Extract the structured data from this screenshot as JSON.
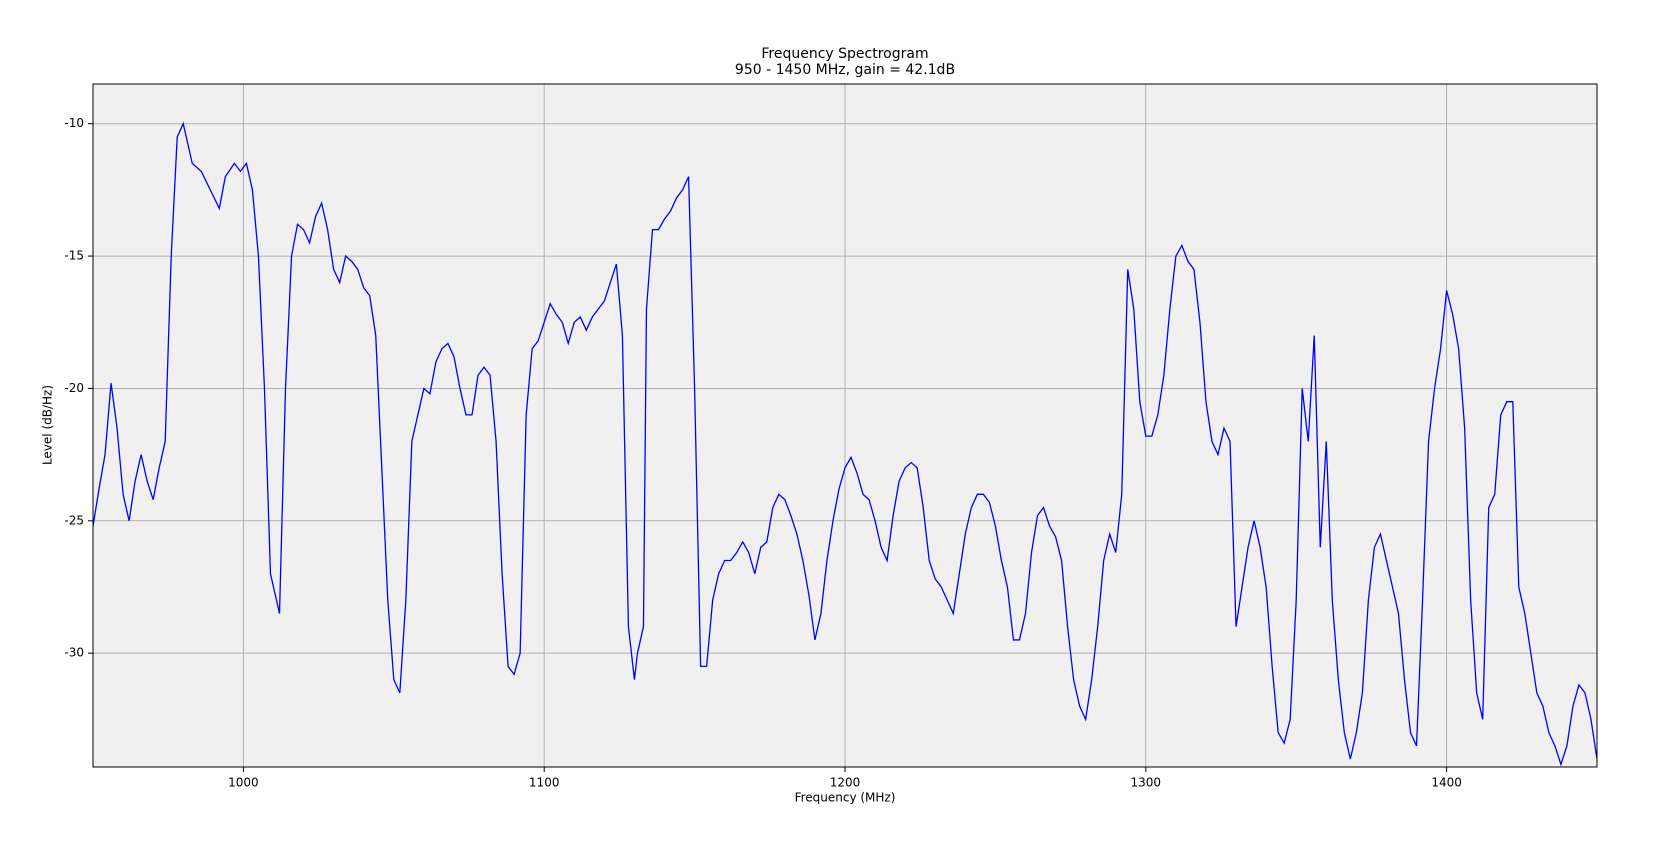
{
  "chart_data": {
    "type": "line",
    "title": "Frequency Spectrogram",
    "subtitle": "950 - 1450 MHz, gain = 42.1dB",
    "x_label": "Frequency (MHz)",
    "y_label": "Level (dB/Hz)",
    "color": "#0000ff",
    "grid": true,
    "xlim": [
      950,
      1450
    ],
    "ylim": [
      -34.3,
      -8.5
    ],
    "xticks": [
      1000,
      1100,
      1200,
      1300,
      1400
    ],
    "yticks": [
      -10,
      -15,
      -20,
      -25,
      -30
    ],
    "x": [
      950,
      952,
      954,
      956,
      958,
      960,
      962,
      964,
      966,
      968,
      970,
      972,
      974,
      976,
      978,
      980,
      983,
      986,
      989,
      992,
      994,
      997,
      999,
      1001,
      1003,
      1005,
      1007,
      1009,
      1011,
      1012,
      1014,
      1016,
      1018,
      1020,
      1022,
      1024,
      1026,
      1028,
      1030,
      1032,
      1034,
      1036,
      1038,
      1040,
      1042,
      1044,
      1046,
      1048,
      1050,
      1052,
      1054,
      1056,
      1058,
      1060,
      1062,
      1064,
      1066,
      1068,
      1070,
      1072,
      1074,
      1076,
      1078,
      1080,
      1082,
      1084,
      1086,
      1088,
      1090,
      1092,
      1094,
      1096,
      1098,
      1100,
      1102,
      1104,
      1106,
      1108,
      1110,
      1112,
      1114,
      1116,
      1118,
      1120,
      1122,
      1124,
      1126,
      1128,
      1130,
      1131,
      1133,
      1134,
      1136,
      1138,
      1140,
      1142,
      1144,
      1146,
      1148,
      1150,
      1152,
      1154,
      1156,
      1158,
      1160,
      1162,
      1164,
      1166,
      1168,
      1170,
      1172,
      1174,
      1176,
      1178,
      1180,
      1182,
      1184,
      1186,
      1188,
      1190,
      1192,
      1194,
      1196,
      1198,
      1200,
      1202,
      1204,
      1206,
      1208,
      1210,
      1212,
      1214,
      1216,
      1218,
      1220,
      1222,
      1224,
      1226,
      1228,
      1230,
      1232,
      1234,
      1236,
      1238,
      1240,
      1242,
      1244,
      1246,
      1248,
      1250,
      1252,
      1254,
      1256,
      1258,
      1260,
      1262,
      1264,
      1266,
      1268,
      1270,
      1272,
      1274,
      1276,
      1278,
      1280,
      1282,
      1284,
      1286,
      1288,
      1290,
      1292,
      1294,
      1296,
      1298,
      1300,
      1302,
      1304,
      1306,
      1308,
      1310,
      1312,
      1314,
      1316,
      1318,
      1320,
      1322,
      1324,
      1326,
      1328,
      1330,
      1332,
      1334,
      1336,
      1338,
      1340,
      1342,
      1344,
      1346,
      1348,
      1350,
      1352,
      1354,
      1356,
      1358,
      1360,
      1362,
      1364,
      1366,
      1368,
      1370,
      1372,
      1374,
      1376,
      1378,
      1380,
      1382,
      1384,
      1386,
      1388,
      1390,
      1392,
      1394,
      1396,
      1398,
      1400,
      1402,
      1404,
      1406,
      1408,
      1410,
      1412,
      1414,
      1416,
      1418,
      1420,
      1422,
      1424,
      1426,
      1428,
      1430,
      1432,
      1434,
      1436,
      1438,
      1440,
      1442,
      1444,
      1446,
      1448,
      1450
    ],
    "values": [
      -25.2,
      -23.8,
      -22.5,
      -19.8,
      -21.5,
      -24,
      -25,
      -23.5,
      -22.5,
      -23.5,
      -24.2,
      -23,
      -22,
      -15,
      -10.5,
      -10,
      -11.5,
      -11.8,
      -12.5,
      -13.2,
      -12,
      -11.5,
      -11.8,
      -11.5,
      -12.5,
      -15,
      -20,
      -27,
      -28,
      -28.5,
      -20,
      -15,
      -13.8,
      -14,
      -14.5,
      -13.5,
      -13,
      -14,
      -15.5,
      -16,
      -15,
      -15.2,
      -15.5,
      -16.2,
      -16.5,
      -18,
      -23,
      -28,
      -31,
      -31.5,
      -28,
      -22,
      -21,
      -20,
      -20.2,
      -19,
      -18.5,
      -18.3,
      -18.8,
      -20,
      -21,
      -21,
      -19.5,
      -19.2,
      -19.5,
      -22,
      -27,
      -30.5,
      -30.8,
      -30,
      -21,
      -18.5,
      -18.2,
      -17.5,
      -16.8,
      -17.2,
      -17.5,
      -18.3,
      -17.5,
      -17.3,
      -17.8,
      -17.3,
      -17,
      -16.7,
      -16,
      -15.3,
      -18,
      -29,
      -31,
      -30,
      -29,
      -17,
      -14,
      -14,
      -13.6,
      -13.3,
      -12.8,
      -12.5,
      -12,
      -20,
      -30.5,
      -30.5,
      -28,
      -27,
      -26.5,
      -26.5,
      -26.2,
      -25.8,
      -26.2,
      -27,
      -26,
      -25.8,
      -24.5,
      -24,
      -24.2,
      -24.8,
      -25.5,
      -26.5,
      -27.8,
      -29.5,
      -28.5,
      -26.5,
      -25,
      -23.8,
      -23,
      -22.6,
      -23.2,
      -24,
      -24.2,
      -25,
      -26,
      -26.5,
      -24.8,
      -23.5,
      -23,
      -22.8,
      -23,
      -24.5,
      -26.5,
      -27.2,
      -27.5,
      -28,
      -28.5,
      -27,
      -25.5,
      -24.5,
      -24,
      -24,
      -24.3,
      -25.2,
      -26.5,
      -27.5,
      -29.5,
      -29.5,
      -28.5,
      -26.2,
      -24.8,
      -24.5,
      -25.2,
      -25.6,
      -26.5,
      -29,
      -31,
      -32,
      -32.5,
      -31,
      -29,
      -26.5,
      -25.5,
      -26.2,
      -24,
      -15.5,
      -17,
      -20.5,
      -21.8,
      -21.8,
      -21,
      -19.5,
      -17,
      -15,
      -14.6,
      -15.2,
      -15.5,
      -17.5,
      -20.5,
      -22,
      -22.5,
      -21.5,
      -22,
      -29,
      -27.5,
      -26,
      -25,
      -26,
      -27.5,
      -30.5,
      -33,
      -33.4,
      -32.5,
      -28,
      -20,
      -22,
      -18,
      -26,
      -22,
      -28,
      -31,
      -33,
      -34,
      -33,
      -31.5,
      -28,
      -26,
      -25.5,
      -26.5,
      -27.5,
      -28.5,
      -31,
      -33,
      -33.5,
      -28,
      -22,
      -20,
      -18.5,
      -16.3,
      -17.2,
      -18.5,
      -21.5,
      -28,
      -31.5,
      -32.5,
      -24.5,
      -24,
      -21,
      -20.5,
      -20.5,
      -27.5,
      -28.5,
      -30,
      -31.5,
      -32,
      -33,
      -33.5,
      -34.2,
      -33.5,
      -32,
      -31.2,
      -31.5,
      -32.5,
      -34
    ]
  }
}
